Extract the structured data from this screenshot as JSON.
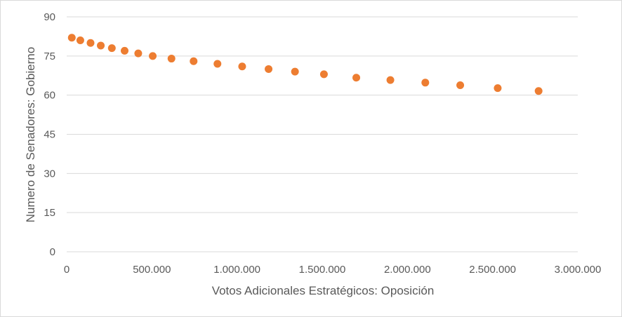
{
  "chart_data": {
    "type": "scatter",
    "xlabel": "Votos Adicionales Estratégicos: Oposición",
    "ylabel": "Numero de Senadores: Gobierno",
    "xlim": [
      0,
      3000000
    ],
    "ylim": [
      0,
      90
    ],
    "xticks": [
      0,
      500000,
      1000000,
      1500000,
      2000000,
      2500000,
      3000000
    ],
    "xtick_labels": [
      "0",
      "500.000",
      "1.000.000",
      "1.500.000",
      "2.000.000",
      "2.500.000",
      "3.000.000"
    ],
    "yticks": [
      0,
      15,
      30,
      45,
      60,
      75,
      90
    ],
    "ytick_labels": [
      "0",
      "15",
      "30",
      "45",
      "60",
      "75",
      "90"
    ],
    "grid": true,
    "marker_color": "#ED7D31",
    "grid_color": "#d9d9d9",
    "points": [
      {
        "x": 30000,
        "y": 82
      },
      {
        "x": 80000,
        "y": 81
      },
      {
        "x": 140000,
        "y": 80
      },
      {
        "x": 200000,
        "y": 79
      },
      {
        "x": 265000,
        "y": 78
      },
      {
        "x": 340000,
        "y": 77
      },
      {
        "x": 420000,
        "y": 76
      },
      {
        "x": 505000,
        "y": 75
      },
      {
        "x": 615000,
        "y": 74
      },
      {
        "x": 745000,
        "y": 73
      },
      {
        "x": 885000,
        "y": 72
      },
      {
        "x": 1030000,
        "y": 71
      },
      {
        "x": 1185000,
        "y": 70
      },
      {
        "x": 1340000,
        "y": 69
      },
      {
        "x": 1510000,
        "y": 68
      },
      {
        "x": 1700000,
        "y": 66.7
      },
      {
        "x": 1900000,
        "y": 65.8
      },
      {
        "x": 2105000,
        "y": 64.8
      },
      {
        "x": 2310000,
        "y": 63.8
      },
      {
        "x": 2530000,
        "y": 62.7
      },
      {
        "x": 2770000,
        "y": 61.6
      }
    ]
  }
}
